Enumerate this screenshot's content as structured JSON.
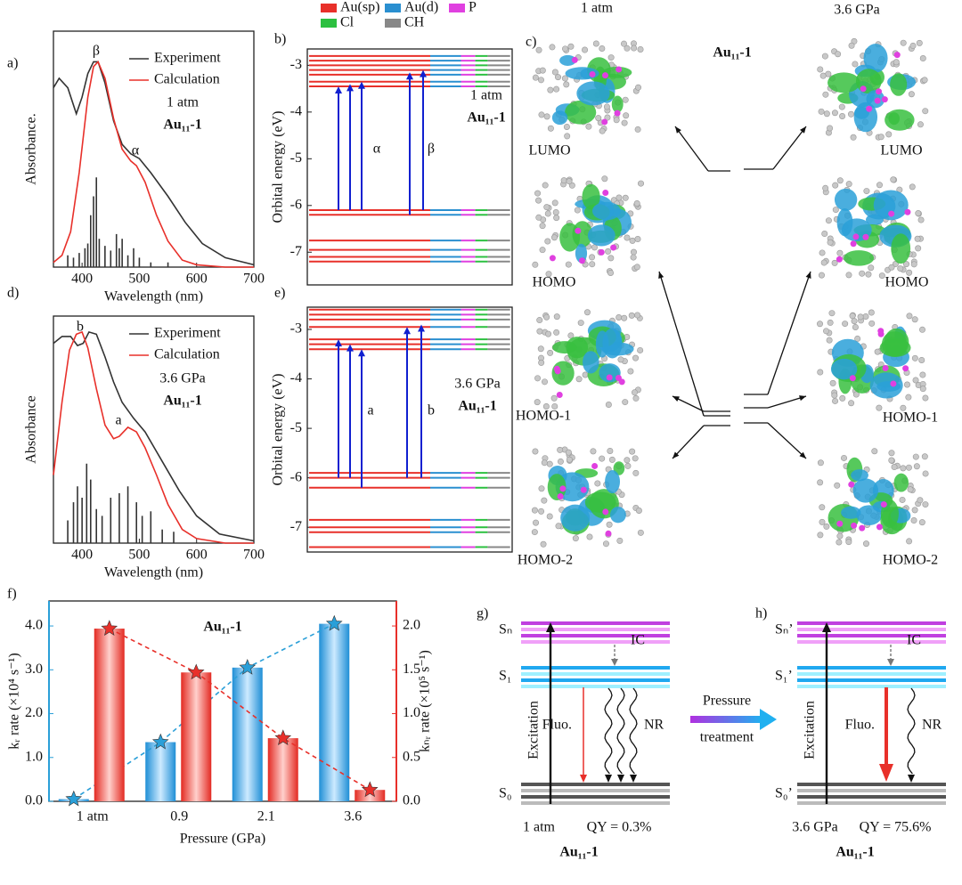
{
  "panel_labels": [
    "a)",
    "b)",
    "c)",
    "d)",
    "e)",
    "f)",
    "g)",
    "h)"
  ],
  "spectra": [
    {
      "xlabel": "Wavelength (nm)",
      "ylabel": "Absorbance.",
      "condition": "1 atm",
      "compound": "Au₁₁-1",
      "peak_labels": [
        "β",
        "α"
      ],
      "xlim": [
        350,
        700
      ],
      "xticks": [
        400,
        500,
        600,
        700
      ],
      "ylim": [
        0,
        1
      ],
      "series": [
        {
          "name": "Experiment",
          "color": "#333333",
          "x": [
            350,
            360,
            375,
            390,
            400,
            410,
            420,
            428,
            440,
            455,
            470,
            485,
            500,
            520,
            550,
            580,
            610,
            650,
            700
          ],
          "y": [
            0.76,
            0.8,
            0.76,
            0.65,
            0.72,
            0.82,
            0.87,
            0.87,
            0.78,
            0.62,
            0.52,
            0.48,
            0.46,
            0.4,
            0.3,
            0.19,
            0.1,
            0.04,
            0.01
          ]
        },
        {
          "name": "Calculation",
          "color": "#e8302a",
          "x": [
            350,
            365,
            380,
            395,
            410,
            420,
            428,
            440,
            455,
            470,
            485,
            495,
            510,
            530,
            550,
            575,
            600,
            650,
            700
          ],
          "y": [
            0.02,
            0.05,
            0.15,
            0.4,
            0.72,
            0.85,
            0.87,
            0.8,
            0.63,
            0.5,
            0.45,
            0.43,
            0.36,
            0.22,
            0.11,
            0.03,
            0.01,
            0,
            0
          ]
        }
      ],
      "sticks": {
        "color": "#333333",
        "x": [
          375,
          385,
          395,
          405,
          410,
          415,
          420,
          425,
          430,
          440,
          450,
          460,
          465,
          470,
          480,
          490,
          500,
          520,
          550
        ],
        "y": [
          0.05,
          0.04,
          0.06,
          0.08,
          0.1,
          0.22,
          0.3,
          0.38,
          0.12,
          0.09,
          0.07,
          0.14,
          0.08,
          0.12,
          0.05,
          0.08,
          0.04,
          0.02,
          0.02
        ]
      }
    },
    {
      "xlabel": "Wavelength (nm)",
      "ylabel": "Absorbance",
      "condition": "3.6 GPa",
      "compound": "Au₁₁-1",
      "peak_labels": [
        "b",
        "a"
      ],
      "xlim": [
        350,
        700
      ],
      "xticks": [
        400,
        500,
        600,
        700
      ],
      "ylim": [
        0,
        1
      ],
      "series": [
        {
          "name": "Experiment",
          "color": "#333333",
          "x": [
            350,
            365,
            380,
            392,
            402,
            412,
            425,
            440,
            455,
            470,
            490,
            510,
            540,
            570,
            600,
            640,
            700
          ],
          "y": [
            0.88,
            0.91,
            0.91,
            0.87,
            0.88,
            0.93,
            0.92,
            0.82,
            0.71,
            0.62,
            0.55,
            0.49,
            0.36,
            0.23,
            0.12,
            0.04,
            0.01
          ]
        },
        {
          "name": "Calculation",
          "color": "#e8302a",
          "x": [
            350,
            365,
            378,
            390,
            400,
            410,
            425,
            440,
            455,
            465,
            480,
            495,
            510,
            530,
            550,
            575,
            600,
            650,
            700
          ],
          "y": [
            0.3,
            0.62,
            0.85,
            0.92,
            0.93,
            0.86,
            0.68,
            0.52,
            0.46,
            0.47,
            0.51,
            0.49,
            0.42,
            0.3,
            0.17,
            0.06,
            0.02,
            0,
            0
          ]
        }
      ],
      "sticks": {
        "color": "#333333",
        "x": [
          375,
          385,
          392,
          400,
          408,
          415,
          425,
          435,
          450,
          465,
          480,
          495,
          505,
          520,
          540,
          560
        ],
        "y": [
          0.1,
          0.18,
          0.25,
          0.2,
          0.35,
          0.28,
          0.15,
          0.12,
          0.2,
          0.22,
          0.25,
          0.18,
          0.12,
          0.14,
          0.06,
          0.05
        ]
      }
    }
  ],
  "orbital_legend": [
    {
      "name": "Au(sp)",
      "color": "#e8302a"
    },
    {
      "name": "Au(d)",
      "color": "#2a8fd0"
    },
    {
      "name": "P",
      "color": "#e040e0"
    },
    {
      "name": "Cl",
      "color": "#2cc040"
    },
    {
      "name": "CH",
      "color": "#888888"
    }
  ],
  "orbitals": [
    {
      "ylabel": "Orbital energy (eV)",
      "condition": "1 atm",
      "compound": "Au₁₁-1",
      "transition_labels": [
        "α",
        "β"
      ],
      "ylim": [
        -7.7,
        -2.65
      ],
      "yticks": [
        -3,
        -4,
        -5,
        -6,
        -7
      ],
      "levels": [
        -2.8,
        -2.9,
        -3.0,
        -3.1,
        -3.2,
        -3.35,
        -3.45,
        -6.1,
        -6.2,
        -6.75,
        -6.95,
        -7.1,
        -7.2
      ],
      "arrows": [
        {
          "from": -6.1,
          "to": -3.45
        },
        {
          "from": -6.1,
          "to": -3.4
        },
        {
          "from": -6.1,
          "to": -3.35
        },
        {
          "from": -6.2,
          "to": -3.15
        },
        {
          "from": -6.1,
          "to": -3.1
        }
      ]
    },
    {
      "ylabel": "Orbital energy (eV)",
      "condition": "3.6 GPa",
      "compound": "Au₁₁-1",
      "transition_labels": [
        "a",
        "b"
      ],
      "ylim": [
        -7.5,
        -2.55
      ],
      "yticks": [
        -3,
        -4,
        -5,
        -6,
        -7
      ],
      "levels": [
        -2.6,
        -2.7,
        -2.8,
        -2.95,
        -3.2,
        -3.3,
        -3.4,
        -5.9,
        -6.0,
        -6.2,
        -6.85,
        -7.0,
        -7.1,
        -7.4
      ],
      "arrows": [
        {
          "from": -6.0,
          "to": -3.2
        },
        {
          "from": -6.0,
          "to": -3.3
        },
        {
          "from": -6.2,
          "to": -3.4
        },
        {
          "from": -6.0,
          "to": -2.95
        },
        {
          "from": -6.0,
          "to": -2.9
        }
      ]
    }
  ],
  "molecules": {
    "left_title": "1 atm",
    "right_title": "3.6 GPa",
    "compound": "Au₁₁-1",
    "left": [
      "LUMO",
      "HOMO",
      "HOMO-1",
      "HOMO-2"
    ],
    "right": [
      "LUMO",
      "HOMO",
      "HOMO-1",
      "HOMO-2"
    ]
  },
  "chart_data": {
    "type": "bar",
    "title": "Au₁₁-1",
    "categories": [
      "1 atm",
      "0.9",
      "2.1",
      "3.6"
    ],
    "xlabel": "Pressure (GPa)",
    "ylabel": "kᵣ rate (×10⁴ s⁻¹)",
    "y2label": "kₙᵣ rate (×10⁵ s⁻¹)",
    "series": [
      {
        "color": "#2a9fd8",
        "values": [
          0.05,
          1.35,
          3.05,
          4.05
        ]
      },
      {
        "color": "#e8302a",
        "axis": "y2",
        "values": [
          1.97,
          1.47,
          0.72,
          0.13
        ]
      }
    ],
    "ylim": [
      0,
      4.57
    ],
    "yticks": [
      {
        "value": 0,
        "label": "0.0"
      },
      {
        "value": 1,
        "label": "1.0"
      },
      {
        "value": 2,
        "label": "2.0"
      },
      {
        "value": 3,
        "label": "3.0"
      },
      {
        "value": 4,
        "label": "4.0"
      }
    ],
    "y2lim": [
      0,
      2.285
    ],
    "y2ticks": [
      {
        "value": 0,
        "label": "0.0"
      },
      0.5,
      {
        "value": 1,
        "label": "1.0"
      },
      1.5,
      {
        "value": 2,
        "label": "2.0"
      }
    ]
  },
  "jablonski": [
    {
      "sn": "Sₙ",
      "s1": "S₁",
      "s0": "S₀",
      "ic": "IC",
      "excitation": "Excitation",
      "fluo": "Fluo.",
      "nr": "NR",
      "condition": "1 atm",
      "qy": "QY = 0.3%",
      "compound": "Au₁₁-1"
    },
    {
      "sn": "Sₙ’",
      "s1": "S₁’",
      "s0": "S₀’",
      "ic": "IC",
      "excitation": "Excitation",
      "fluo": "Fluo.",
      "nr": "NR",
      "condition": "3.6 GPa",
      "qy": "QY = 75.6%",
      "compound": "Au₁₁-1"
    }
  ],
  "pressure_arrow": [
    "Pressure",
    "treatment"
  ]
}
